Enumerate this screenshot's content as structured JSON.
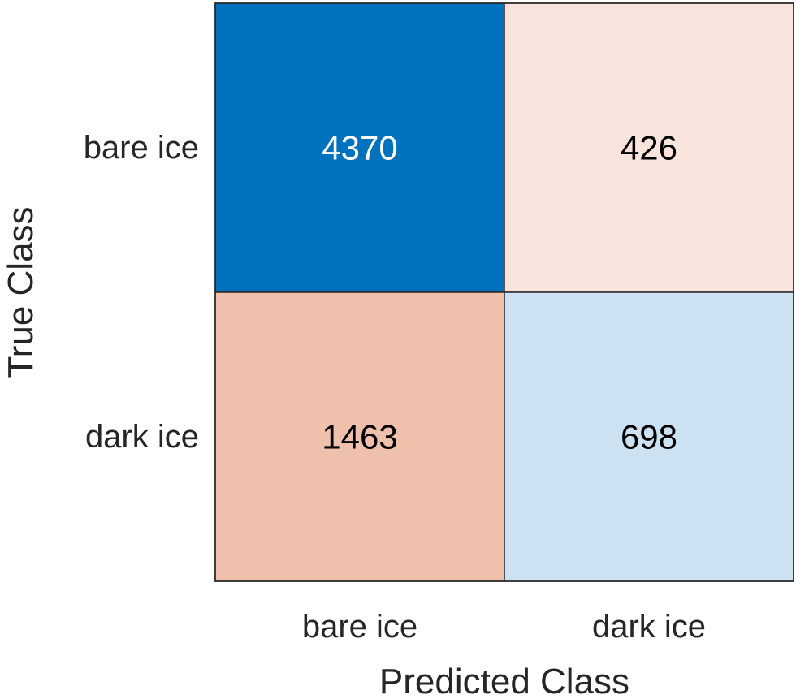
{
  "chart_data": {
    "type": "heatmap",
    "title": "",
    "xlabel": "Predicted Class",
    "ylabel": "True Class",
    "x_categories": [
      "bare ice",
      "dark ice"
    ],
    "y_categories": [
      "bare ice",
      "dark ice"
    ],
    "values": [
      [
        4370,
        426
      ],
      [
        1463,
        698
      ]
    ],
    "cell_colors": [
      [
        "#0072BD",
        "#F9E3DD"
      ],
      [
        "#EFC0AC",
        "#CCE1F1"
      ]
    ],
    "cell_text_colors": [
      [
        "#ffffff",
        "#000000"
      ],
      [
        "#000000",
        "#000000"
      ]
    ],
    "grid": true,
    "legend": "none"
  }
}
